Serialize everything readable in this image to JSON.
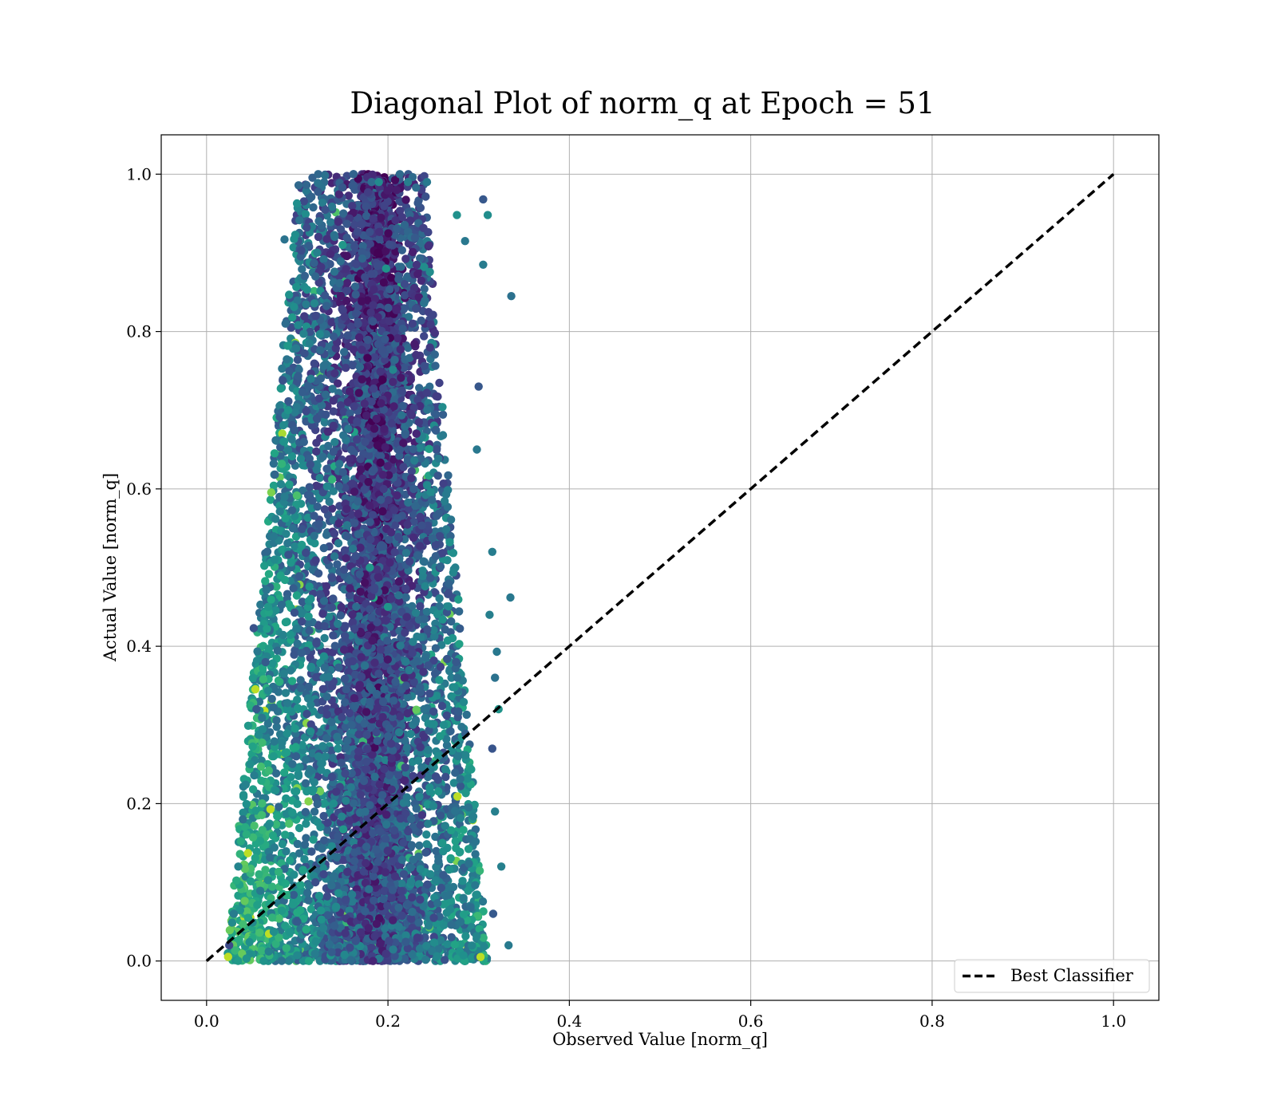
{
  "chart_data": {
    "type": "scatter",
    "title": "Diagonal Plot of norm_q at Epoch = 51",
    "xlabel": "Observed Value [norm_q]",
    "ylabel": "Actual Value [norm_q]",
    "xlim": [
      -0.05,
      1.05
    ],
    "ylim": [
      -0.05,
      1.05
    ],
    "xticks": [
      "0.0",
      "0.2",
      "0.4",
      "0.6",
      "0.8",
      "1.0"
    ],
    "yticks": [
      "0.0",
      "0.2",
      "0.4",
      "0.6",
      "0.8",
      "1.0"
    ],
    "grid": true,
    "colormap": "viridis",
    "scatter_description": "Dense cloud of points: observed values range approx. 0.02 to 0.34, actual values 0.0 to 1.0; spread in observed value narrows toward the top of the range, densest around observed 0.18-0.20.",
    "series": [
      {
        "kind": "scatter",
        "values": [
          [
            0.162,
            1.0
          ],
          [
            0.213,
            1.0
          ],
          [
            0.182,
            0.99
          ],
          [
            0.19,
            0.99
          ],
          [
            0.222,
            0.99
          ],
          [
            0.243,
            0.99
          ],
          [
            0.305,
            0.968
          ],
          [
            0.31,
            0.948
          ],
          [
            0.276,
            0.948
          ],
          [
            0.086,
            0.917
          ],
          [
            0.336,
            0.845
          ],
          [
            0.087,
            0.81
          ],
          [
            0.052,
            0.423
          ],
          [
            0.335,
            0.462
          ],
          [
            0.32,
            0.393
          ],
          [
            0.333,
            0.02
          ],
          [
            0.305,
            0.885
          ],
          [
            0.285,
            0.915
          ],
          [
            0.24,
            0.882
          ],
          [
            0.198,
            0.88
          ],
          [
            0.15,
            0.91
          ],
          [
            0.12,
            0.87
          ],
          [
            0.115,
            0.74
          ],
          [
            0.09,
            0.7
          ],
          [
            0.085,
            0.66
          ],
          [
            0.095,
            0.55
          ],
          [
            0.086,
            0.59
          ],
          [
            0.075,
            0.51
          ],
          [
            0.068,
            0.45
          ],
          [
            0.065,
            0.38
          ],
          [
            0.055,
            0.32
          ],
          [
            0.048,
            0.25
          ],
          [
            0.04,
            0.18
          ],
          [
            0.035,
            0.12
          ],
          [
            0.03,
            0.06
          ],
          [
            0.025,
            0.02
          ],
          [
            0.3,
            0.73
          ],
          [
            0.298,
            0.65
          ],
          [
            0.315,
            0.52
          ],
          [
            0.312,
            0.44
          ],
          [
            0.318,
            0.36
          ],
          [
            0.322,
            0.32
          ],
          [
            0.315,
            0.27
          ],
          [
            0.318,
            0.19
          ],
          [
            0.325,
            0.12
          ],
          [
            0.316,
            0.06
          ],
          [
            0.18,
            0.5
          ],
          [
            0.2,
            0.45
          ],
          [
            0.22,
            0.35
          ],
          [
            0.16,
            0.3
          ],
          [
            0.14,
            0.2
          ],
          [
            0.25,
            0.25
          ],
          [
            0.26,
            0.15
          ],
          [
            0.12,
            0.1
          ],
          [
            0.1,
            0.05
          ],
          [
            0.28,
            0.05
          ]
        ]
      },
      {
        "name": "Best Classifier",
        "kind": "line",
        "style": "dashed",
        "color": "#000000",
        "values": [
          [
            0.0,
            0.0
          ],
          [
            1.0,
            1.0
          ]
        ]
      }
    ],
    "legend": {
      "position": "lower-right",
      "entries": [
        "Best Classifier"
      ]
    }
  }
}
